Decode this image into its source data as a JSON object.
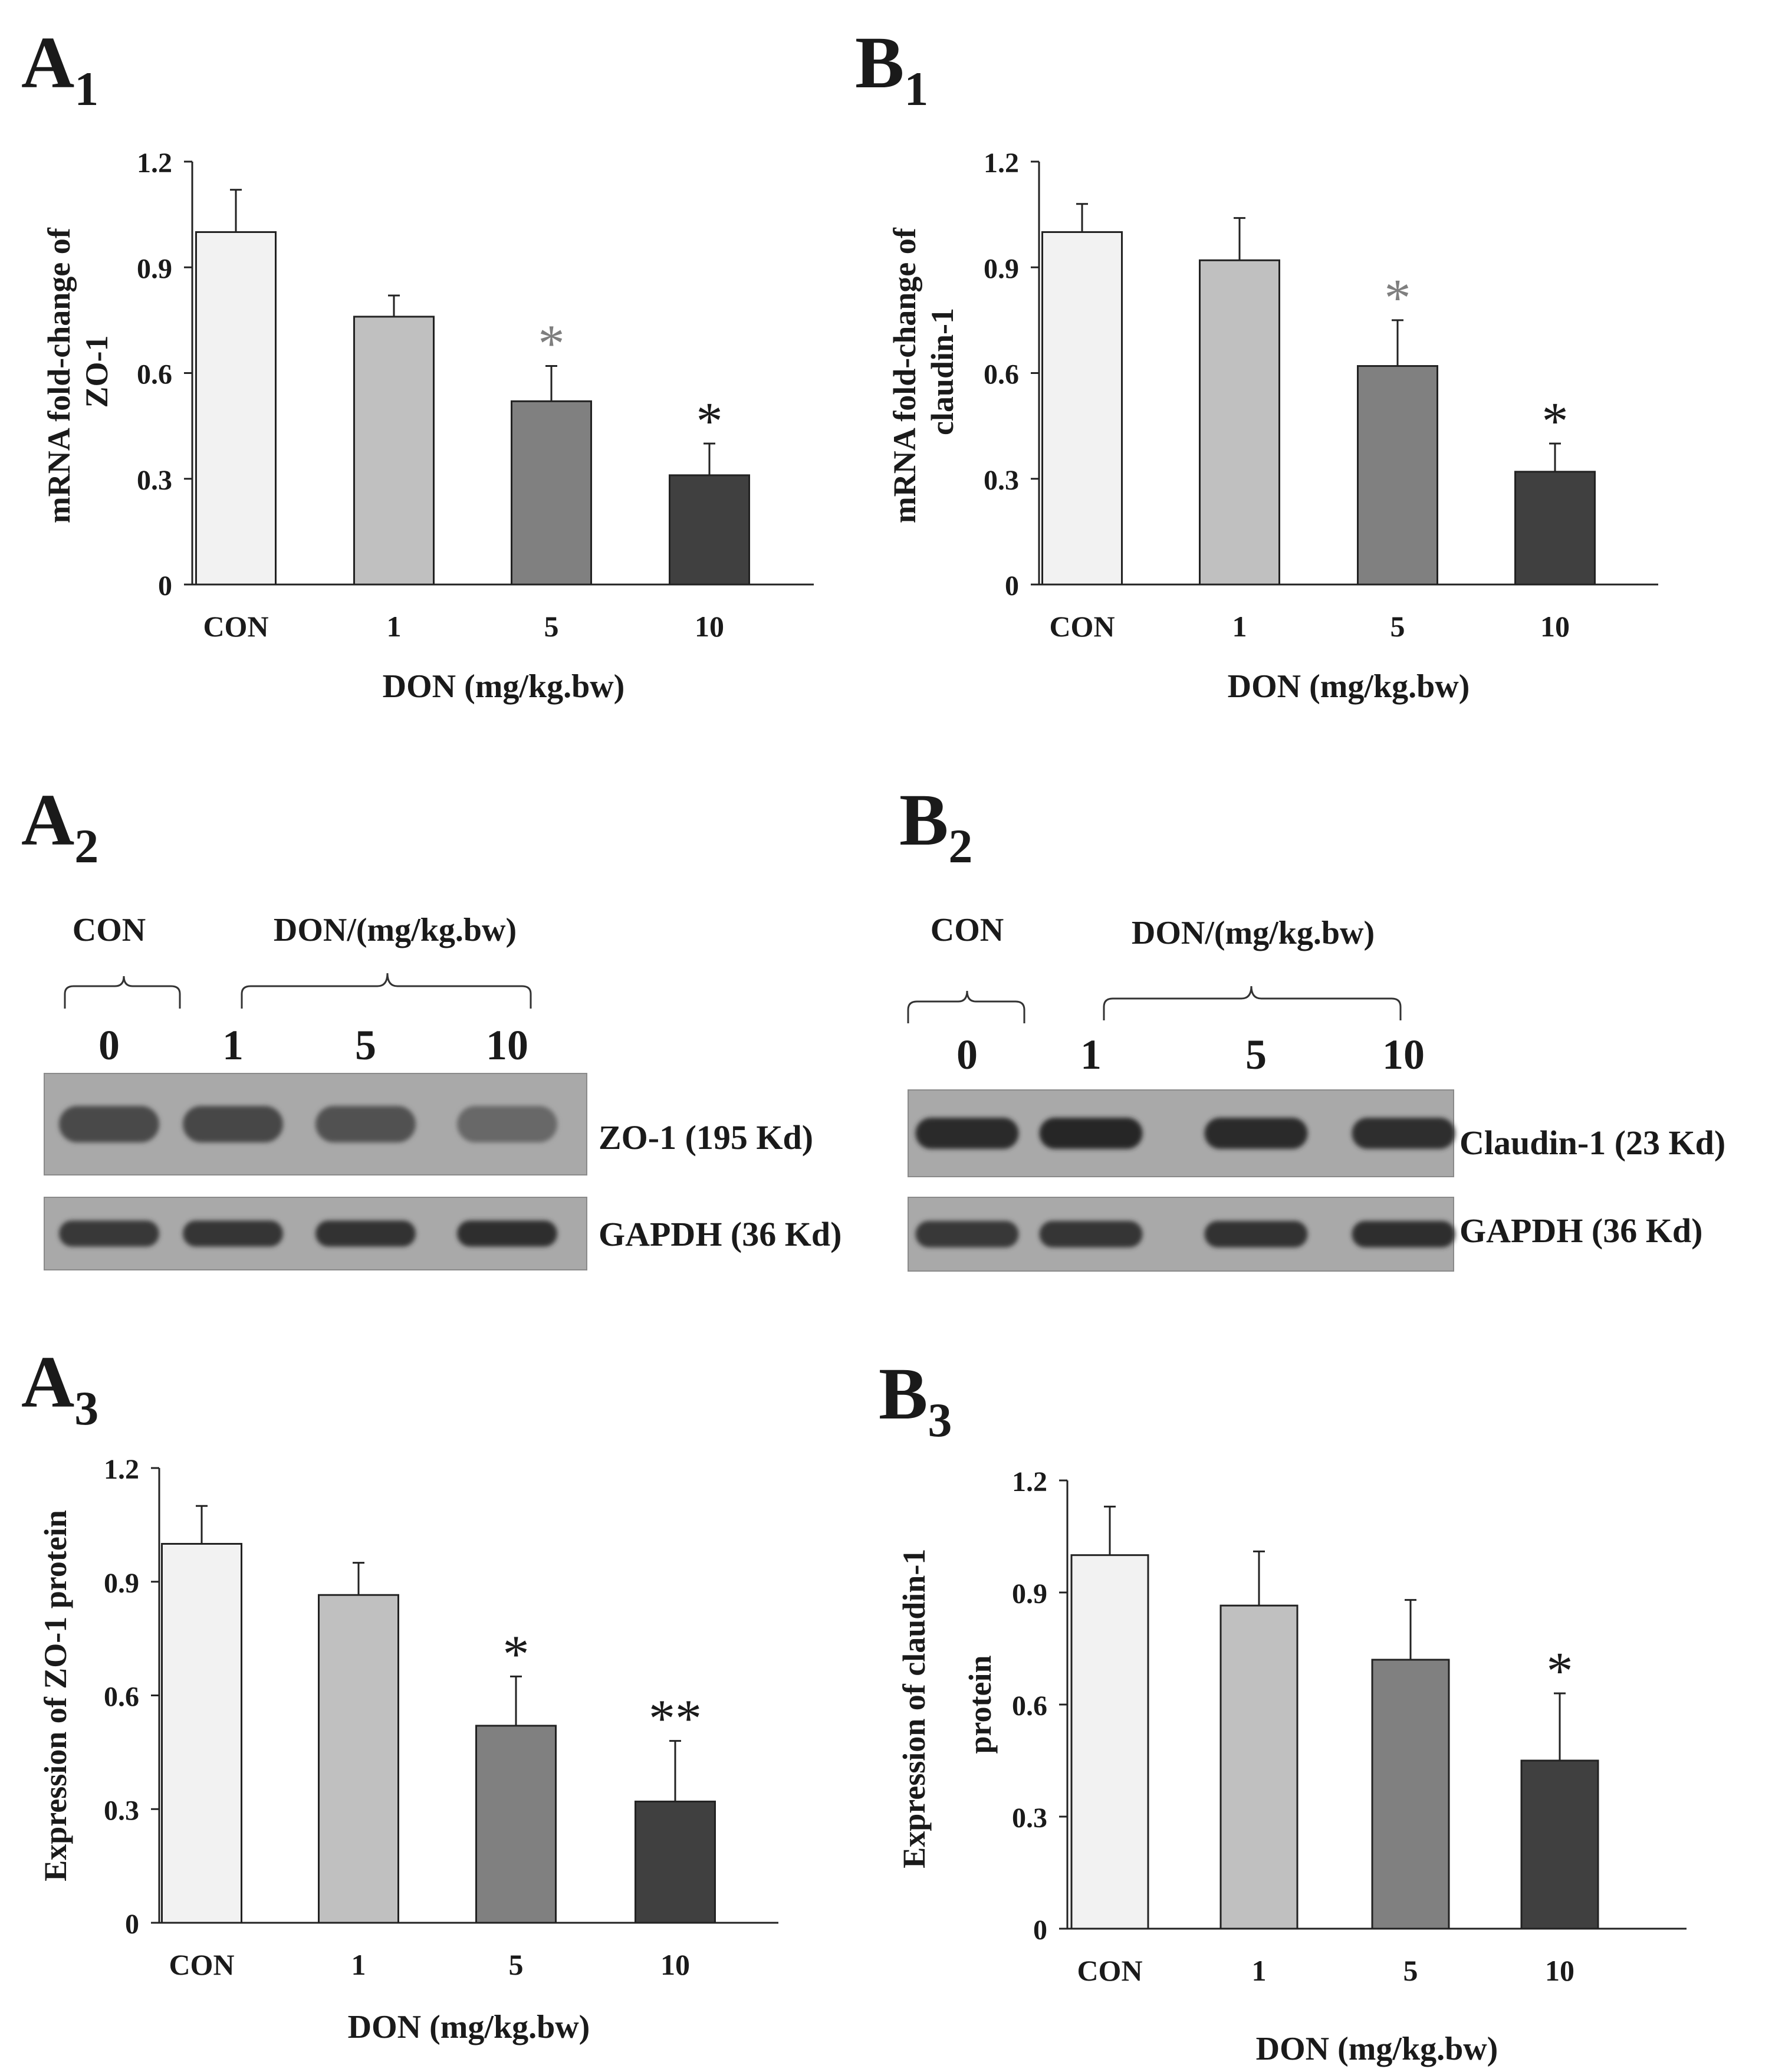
{
  "figure": {
    "x_axis_label": "DON (mg/kg.bw)",
    "categories": [
      "CON",
      "1",
      "5",
      "10"
    ],
    "bar_colors": [
      "#f2f2f2",
      "#c0c0c0",
      "#808080",
      "#404040"
    ],
    "sig_colors": {
      "grey": "#7f7f7f",
      "dark": "#1a1a1a"
    }
  },
  "panels": {
    "A1": {
      "letter": "A",
      "subscript": "1"
    },
    "B1": {
      "letter": "B",
      "subscript": "1"
    },
    "A2": {
      "letter": "A",
      "subscript": "2"
    },
    "B2": {
      "letter": "B",
      "subscript": "2"
    },
    "A3": {
      "letter": "A",
      "subscript": "3"
    },
    "B3": {
      "letter": "B",
      "subscript": "3"
    }
  },
  "chart_data": [
    {
      "id": "A1",
      "type": "bar",
      "title": "",
      "categories": [
        "CON",
        "1",
        "5",
        "10"
      ],
      "values": [
        1.0,
        0.76,
        0.52,
        0.31
      ],
      "errors": [
        0.12,
        0.06,
        0.1,
        0.09
      ],
      "significance": [
        "",
        "",
        "*",
        "*"
      ],
      "significance_color": [
        "dark",
        "dark",
        "grey",
        "dark"
      ],
      "xlabel": "DON (mg/kg.bw)",
      "ylabel": [
        "mRNA fold-change of",
        "ZO-1"
      ],
      "ylim": [
        0,
        1.2
      ],
      "yticks": [
        "0",
        "0.3",
        "0.6",
        "0.9",
        "1.2"
      ],
      "grid": false
    },
    {
      "id": "B1",
      "type": "bar",
      "title": "",
      "categories": [
        "CON",
        "1",
        "5",
        "10"
      ],
      "values": [
        1.0,
        0.92,
        0.62,
        0.32
      ],
      "errors": [
        0.08,
        0.12,
        0.13,
        0.08
      ],
      "significance": [
        "",
        "",
        "*",
        "*"
      ],
      "significance_color": [
        "dark",
        "dark",
        "grey",
        "dark"
      ],
      "xlabel": "DON (mg/kg.bw)",
      "ylabel": [
        "mRNA fold-change of",
        "claudin-1"
      ],
      "ylim": [
        0,
        1.2
      ],
      "yticks": [
        "0",
        "0.3",
        "0.6",
        "0.9",
        "1.2"
      ],
      "grid": false
    },
    {
      "id": "A3",
      "type": "bar",
      "title": "",
      "categories": [
        "CON",
        "1",
        "5",
        "10"
      ],
      "values": [
        1.0,
        0.865,
        0.52,
        0.32
      ],
      "errors": [
        0.1,
        0.085,
        0.13,
        0.16
      ],
      "significance": [
        "",
        "",
        "*",
        "**"
      ],
      "significance_color": [
        "dark",
        "dark",
        "dark",
        "dark"
      ],
      "xlabel": "DON (mg/kg.bw)",
      "ylabel": [
        "Expression of ZO-1 protein"
      ],
      "ylim": [
        0,
        1.2
      ],
      "yticks": [
        "0",
        "0.3",
        "0.6",
        "0.9",
        "1.2"
      ],
      "grid": false
    },
    {
      "id": "B3",
      "type": "bar",
      "title": "",
      "categories": [
        "CON",
        "1",
        "5",
        "10"
      ],
      "values": [
        1.0,
        0.865,
        0.72,
        0.45
      ],
      "errors": [
        0.13,
        0.145,
        0.16,
        0.18
      ],
      "significance": [
        "",
        "",
        "",
        "*"
      ],
      "significance_color": [
        "dark",
        "dark",
        "dark",
        "dark"
      ],
      "xlabel": "DON (mg/kg.bw)",
      "ylabel": [
        "Expression of claudin-1",
        "protein"
      ],
      "ylim": [
        0,
        1.2
      ],
      "yticks": [
        "0",
        "0.3",
        "0.6",
        "0.9",
        "1.2"
      ],
      "grid": false
    }
  ],
  "blots": {
    "A2": {
      "group_con": "CON",
      "group_don": "DON/(mg/kg.bw)",
      "lanes": [
        "0",
        "1",
        "5",
        "10"
      ],
      "target_label": "ZO-1 (195 Kd)",
      "control_label": "GAPDH (36 Kd)",
      "target_band_intensity": [
        0.72,
        0.74,
        0.68,
        0.55
      ],
      "control_band_intensity": [
        0.82,
        0.84,
        0.86,
        0.88
      ]
    },
    "B2": {
      "group_con": "CON",
      "group_don": "DON/(mg/kg.bw)",
      "lanes": [
        "0",
        "1",
        "5",
        "10"
      ],
      "target_label": "Claudin-1 (23 Kd)",
      "control_label": "GAPDH (36 Kd)",
      "target_band_intensity": [
        0.9,
        0.92,
        0.9,
        0.88
      ],
      "control_band_intensity": [
        0.82,
        0.84,
        0.86,
        0.88
      ]
    }
  }
}
